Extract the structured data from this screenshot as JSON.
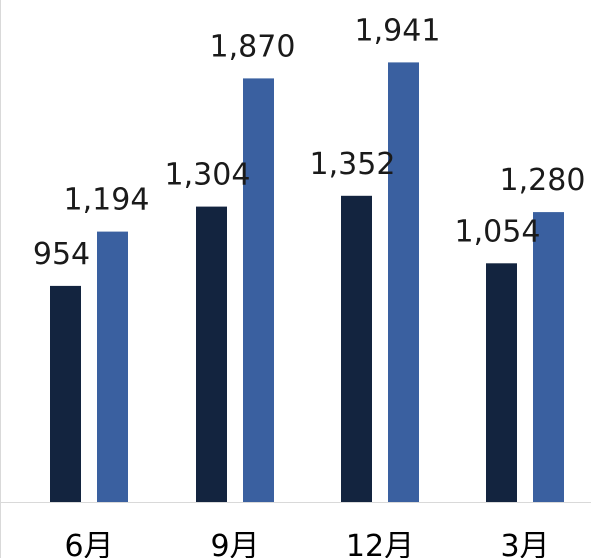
{
  "chart_data": {
    "type": "bar",
    "categories": [
      "6月",
      "9月",
      "12月",
      "3月"
    ],
    "series": [
      {
        "values": [
          954,
          1304,
          1352,
          1054
        ],
        "color": "#13243f"
      },
      {
        "values": [
          1194,
          1870,
          1941,
          1280
        ],
        "color": "#3a60a0"
      }
    ],
    "ylim": [
      0,
      2000
    ],
    "grid": false,
    "legend": "none",
    "data_labels": [
      "954",
      "1,304",
      "1,352",
      "1,054",
      "1,194",
      "1,870",
      "1,941",
      "1,280"
    ]
  }
}
